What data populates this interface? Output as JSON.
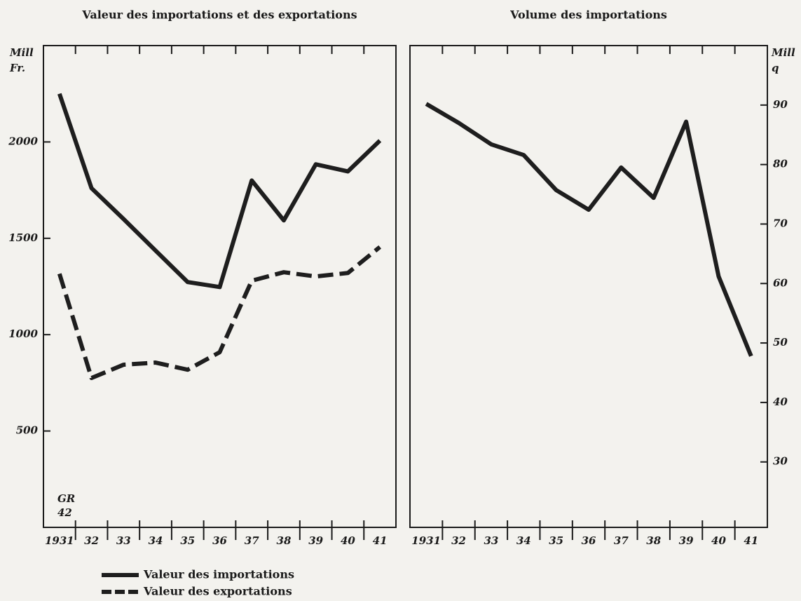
{
  "chart_data": [
    {
      "type": "line",
      "title": "Valeur des importations et des exportations",
      "ylabel": [
        "Mill",
        "Fr."
      ],
      "annotation": [
        "GR",
        "42"
      ],
      "categories": [
        "1931",
        "32",
        "33",
        "34",
        "35",
        "36",
        "37",
        "38",
        "39",
        "40",
        "41"
      ],
      "series": [
        {
          "name": "Valeur des importations",
          "color": "#1e1e1e",
          "dash": false,
          "values": [
            2250,
            1760,
            1600,
            1436,
            1273,
            1247,
            1800,
            1593,
            1884,
            1847,
            2007
          ]
        },
        {
          "name": "Valeur des exportations",
          "color": "#1e1e1e",
          "dash": true,
          "values": [
            1316,
            775,
            844,
            855,
            818,
            909,
            1280,
            1324,
            1302,
            1320,
            1455
          ]
        }
      ],
      "ylim": [
        0,
        2500
      ],
      "yticks": [
        500,
        1000,
        1500,
        2000
      ],
      "yaxis_side": "left",
      "legend": "bottom-left"
    },
    {
      "type": "line",
      "title": "Volume des importations",
      "ylabel": [
        "Mill",
        "q"
      ],
      "categories": [
        "1931",
        "32",
        "33",
        "34",
        "35",
        "36",
        "37",
        "38",
        "39",
        "40",
        "41"
      ],
      "series": [
        {
          "color": "#1e1e1e",
          "dash": false,
          "values": [
            90.2,
            87,
            83.4,
            81.6,
            75.7,
            72.4,
            79.5,
            74.4,
            87.2,
            61.2,
            47.8
          ]
        }
      ],
      "ylim": [
        19,
        100
      ],
      "yticks": [
        30,
        40,
        50,
        60,
        70,
        80,
        90
      ],
      "yaxis_side": "right"
    }
  ]
}
